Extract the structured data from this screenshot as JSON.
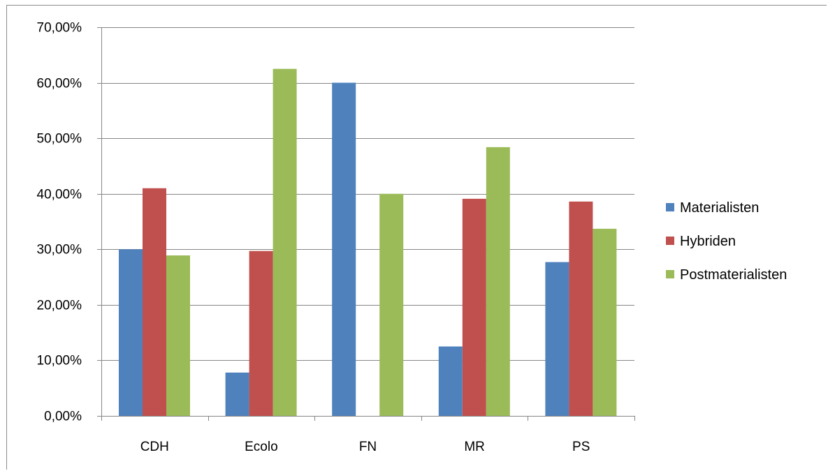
{
  "chart_data": {
    "type": "bar",
    "categories": [
      "CDH",
      "Ecolo",
      "FN",
      "MR",
      "PS"
    ],
    "series": [
      {
        "name": "Materialisten",
        "color": "#4f81bd",
        "values": [
          30.0,
          7.8,
          60.0,
          12.5,
          27.7
        ]
      },
      {
        "name": "Hybriden",
        "color": "#c0504d",
        "values": [
          41.0,
          29.7,
          0.0,
          39.1,
          38.6
        ]
      },
      {
        "name": "Postmaterialisten",
        "color": "#9bbb59",
        "values": [
          28.9,
          62.5,
          40.0,
          48.4,
          33.7
        ]
      }
    ],
    "title": "",
    "xlabel": "",
    "ylabel": "",
    "ylim": [
      0,
      70
    ],
    "yticks": [
      0,
      10,
      20,
      30,
      40,
      50,
      60,
      70
    ],
    "ytick_labels": [
      "0,00%",
      "10,00%",
      "20,00%",
      "30,00%",
      "40,00%",
      "50,00%",
      "60,00%",
      "70,00%"
    ],
    "grid": true,
    "legend_position": "right",
    "gridline_color": "#868686",
    "axis_color": "#868686"
  }
}
